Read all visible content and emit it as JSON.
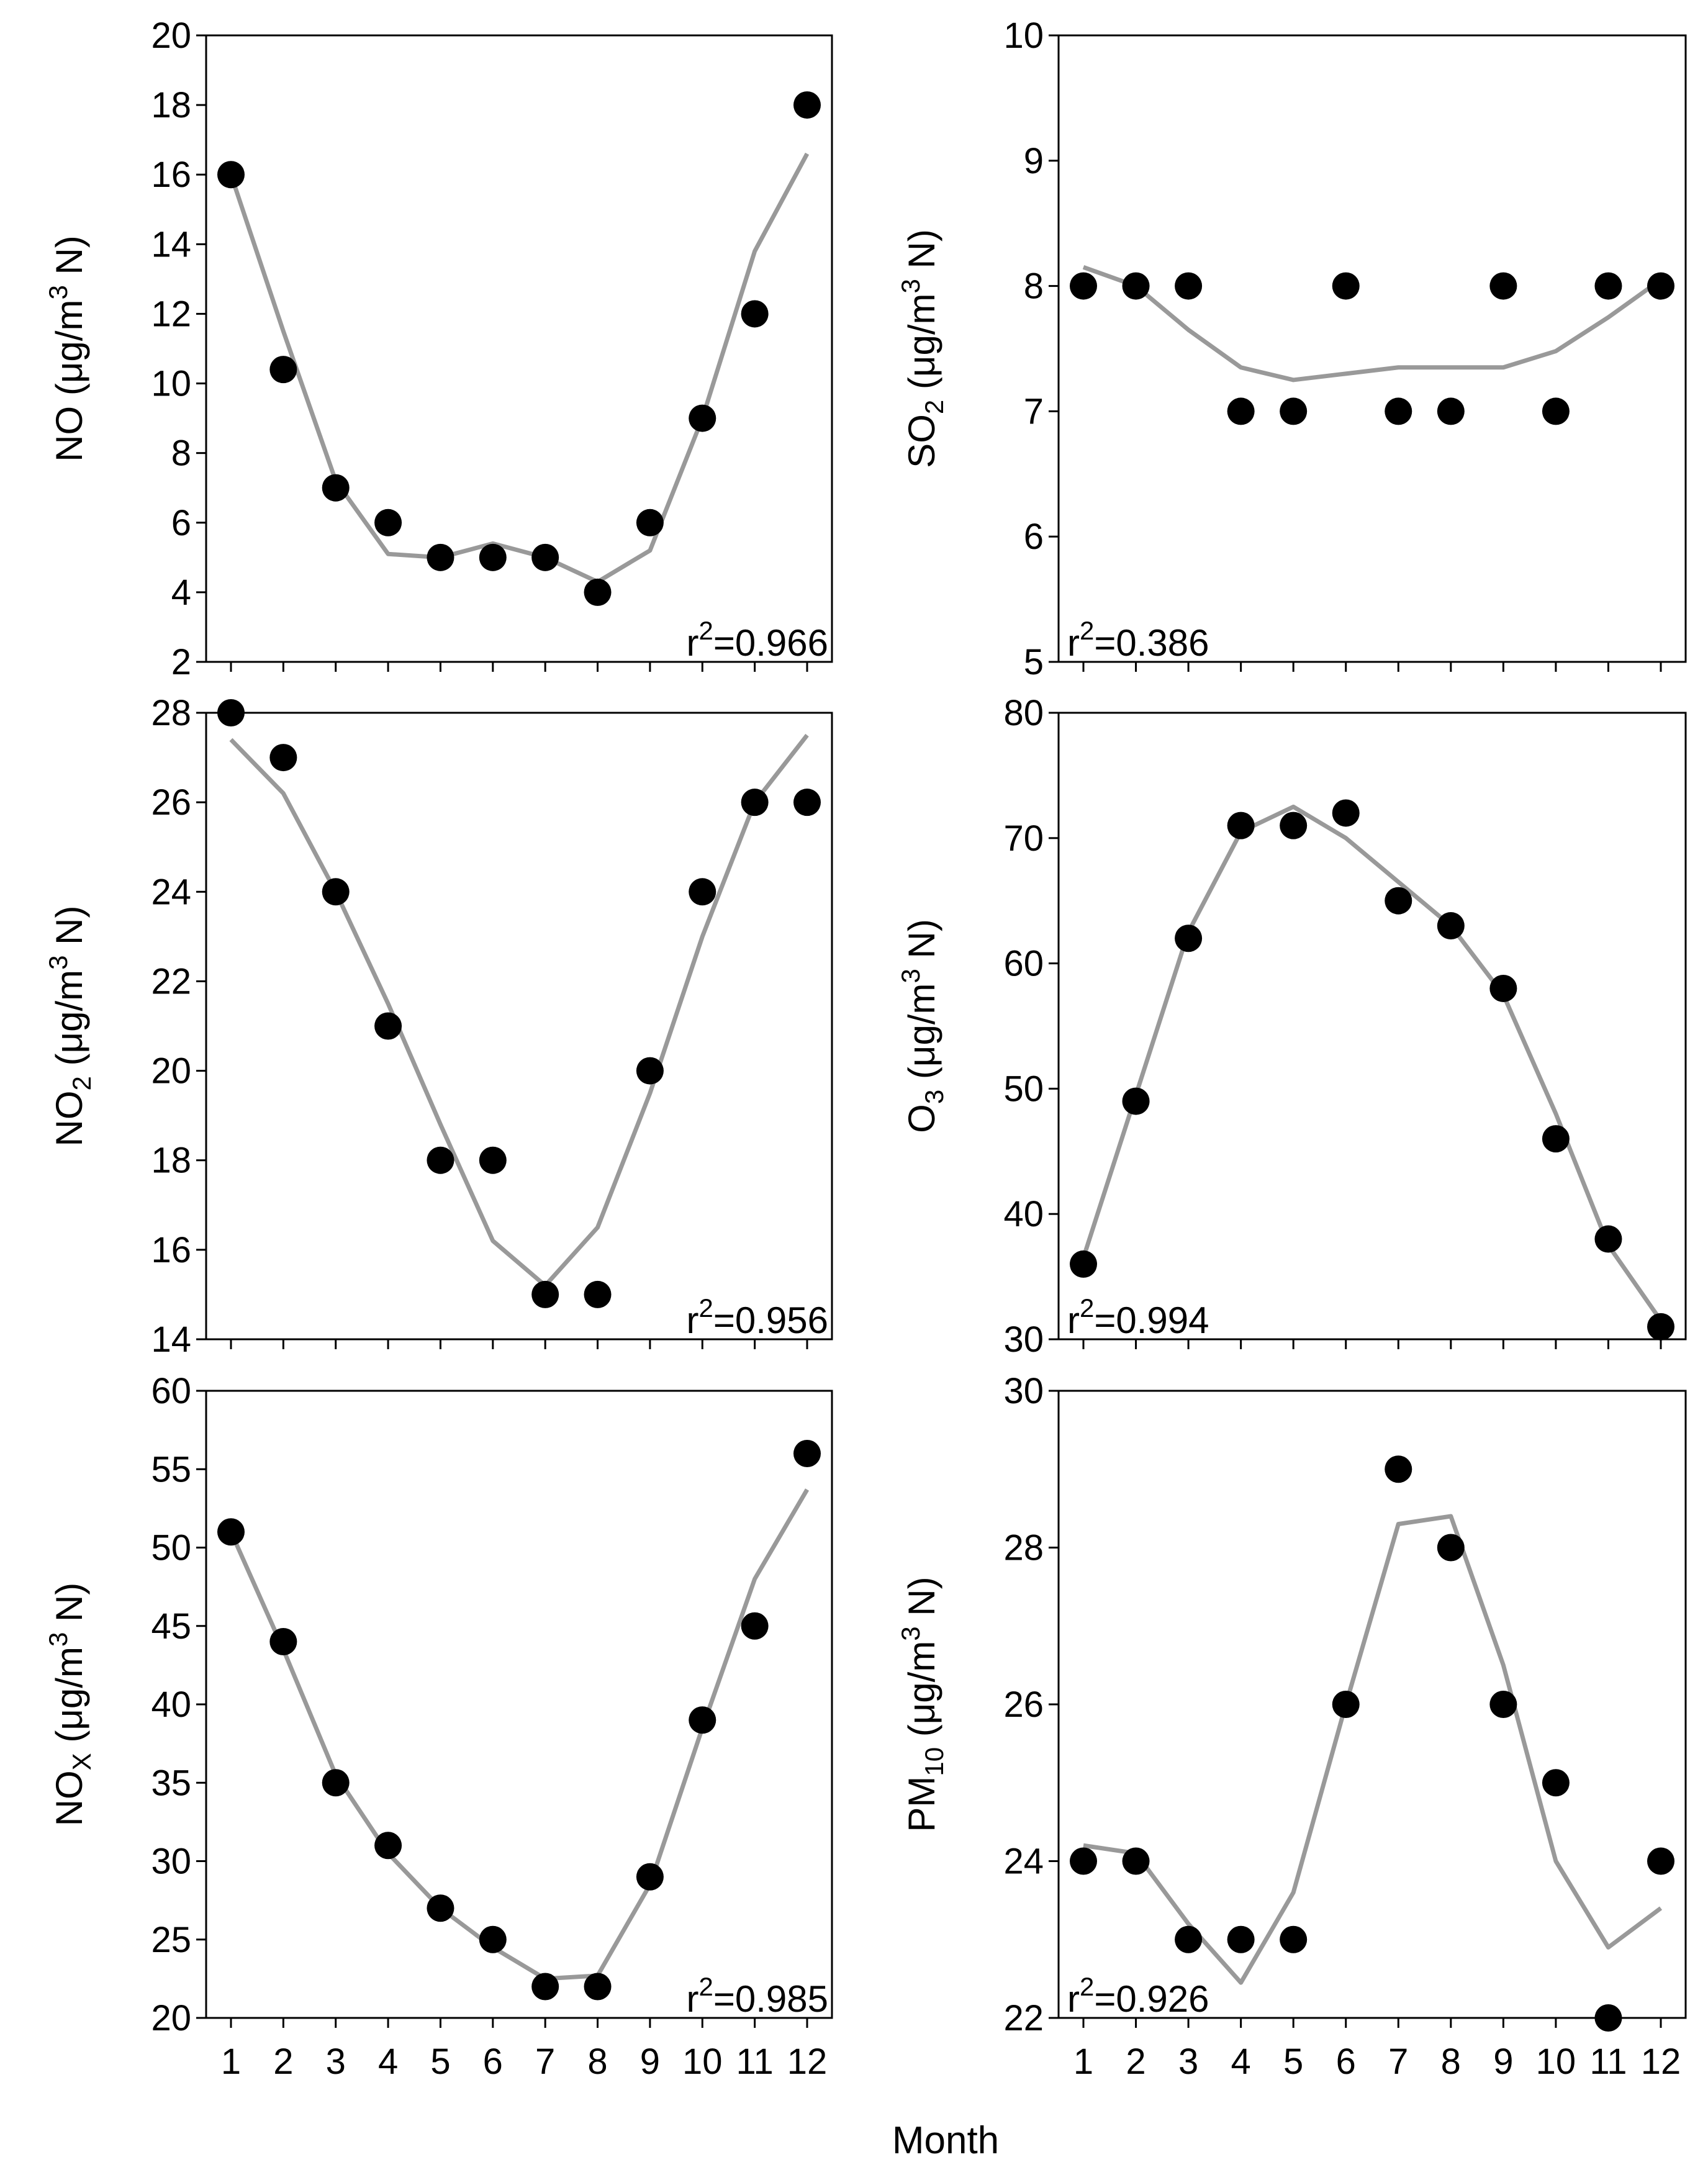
{
  "figure": {
    "xaxis_title": "Month",
    "colors": {
      "points": "#000000",
      "fit_line": "#999999",
      "frame": "#000000",
      "background": "#ffffff"
    }
  },
  "chart_data": [
    {
      "type": "scatter",
      "id": "no",
      "ylabel_main": "NO",
      "ylabel_sub": "",
      "ylabel_unit_pre": " (μg/m",
      "ylabel_unit_sup": "3",
      "ylabel_unit_post": " N)",
      "ylim": [
        2,
        20
      ],
      "yticks": [
        2,
        4,
        6,
        8,
        10,
        12,
        14,
        16,
        18,
        20
      ],
      "x": [
        1,
        2,
        3,
        4,
        5,
        6,
        7,
        8,
        9,
        10,
        11,
        12
      ],
      "points": [
        16,
        10.4,
        7,
        6,
        5,
        5,
        5,
        4,
        6,
        9,
        12,
        18
      ],
      "fit": [
        16,
        11.5,
        7.2,
        5.1,
        5.0,
        5.4,
        5.0,
        4.3,
        5.2,
        9.0,
        13.8,
        16.6
      ],
      "r2_label": "r",
      "r2_sup": "2",
      "r2_value": "=0.966",
      "r2_position": "bottom-right"
    },
    {
      "type": "scatter",
      "id": "so2",
      "ylabel_main": "SO",
      "ylabel_sub": "2",
      "ylabel_unit_pre": " (μg/m",
      "ylabel_unit_sup": "3",
      "ylabel_unit_post": " N)",
      "ylim": [
        5,
        10
      ],
      "yticks": [
        5,
        6,
        7,
        8,
        9,
        10
      ],
      "x": [
        1,
        2,
        3,
        4,
        5,
        6,
        7,
        8,
        9,
        10,
        11,
        12
      ],
      "points": [
        8,
        8,
        8,
        7,
        7,
        8,
        7,
        7,
        8,
        7,
        8,
        8
      ],
      "fit": [
        8.15,
        8.0,
        7.65,
        7.35,
        7.25,
        7.3,
        7.35,
        7.35,
        7.35,
        7.48,
        7.75,
        8.05
      ],
      "r2_label": "r",
      "r2_sup": "2",
      "r2_value": "=0.386",
      "r2_position": "bottom-left"
    },
    {
      "type": "scatter",
      "id": "no2",
      "ylabel_main": "NO",
      "ylabel_sub": "2",
      "ylabel_unit_pre": " (μg/m",
      "ylabel_unit_sup": "3",
      "ylabel_unit_post": " N)",
      "ylim": [
        14,
        28
      ],
      "yticks": [
        14,
        16,
        18,
        20,
        22,
        24,
        26,
        28
      ],
      "x": [
        1,
        2,
        3,
        4,
        5,
        6,
        7,
        8,
        9,
        10,
        11,
        12
      ],
      "points": [
        28,
        27,
        24,
        21,
        18,
        18,
        15,
        15,
        20,
        24,
        26,
        26
      ],
      "fit": [
        27.4,
        26.2,
        24.0,
        21.5,
        18.8,
        16.2,
        15.2,
        16.5,
        19.5,
        23.0,
        26.0,
        27.5
      ],
      "r2_label": "r",
      "r2_sup": "2",
      "r2_value": "=0.956",
      "r2_position": "bottom-right"
    },
    {
      "type": "scatter",
      "id": "o3",
      "ylabel_main": "O",
      "ylabel_sub": "3",
      "ylabel_unit_pre": " (μg/m",
      "ylabel_unit_sup": "3",
      "ylabel_unit_post": " N)",
      "ylim": [
        30,
        80
      ],
      "yticks": [
        30,
        40,
        50,
        60,
        70,
        80
      ],
      "x": [
        1,
        2,
        3,
        4,
        5,
        6,
        7,
        8,
        9,
        10,
        11,
        12
      ],
      "points": [
        36,
        49,
        62,
        71,
        71,
        72,
        65,
        63,
        58,
        46,
        38,
        31
      ],
      "fit": [
        36.5,
        49.5,
        62.5,
        70.5,
        72.5,
        70.0,
        66.5,
        63.0,
        57.5,
        48.0,
        37.5,
        31.5
      ],
      "r2_label": "r",
      "r2_sup": "2",
      "r2_value": "=0.994",
      "r2_position": "bottom-left"
    },
    {
      "type": "scatter",
      "id": "nox",
      "ylabel_main": "NO",
      "ylabel_sub": "X",
      "ylabel_unit_pre": " (μg/m",
      "ylabel_unit_sup": "3",
      "ylabel_unit_post": " N)",
      "ylim": [
        20,
        60
      ],
      "yticks": [
        20,
        25,
        30,
        35,
        40,
        45,
        50,
        55,
        60
      ],
      "x": [
        1,
        2,
        3,
        4,
        5,
        6,
        7,
        8,
        9,
        10,
        11,
        12
      ],
      "points": [
        51,
        44,
        35,
        31,
        27,
        25,
        22,
        22,
        29,
        39,
        45,
        56
      ],
      "fit": [
        51,
        43.5,
        35.5,
        30.5,
        27.0,
        24.5,
        22.5,
        22.7,
        28.5,
        38.5,
        48.0,
        53.7
      ],
      "r2_label": "r",
      "r2_sup": "2",
      "r2_value": "=0.985",
      "r2_position": "bottom-right"
    },
    {
      "type": "scatter",
      "id": "pm10",
      "ylabel_main": "PM",
      "ylabel_sub": "10",
      "ylabel_unit_pre": " (μg/m",
      "ylabel_unit_sup": "3",
      "ylabel_unit_post": " N)",
      "ylim": [
        22,
        30
      ],
      "yticks": [
        22,
        24,
        26,
        28,
        30
      ],
      "xticks_labels": [
        "1",
        "2",
        "3",
        "4",
        "5",
        "6",
        "7",
        "8",
        "9",
        "10",
        "11",
        "12"
      ],
      "x": [
        1,
        2,
        3,
        4,
        5,
        6,
        7,
        8,
        9,
        10,
        11,
        12
      ],
      "points": [
        24,
        24,
        23,
        23,
        23,
        26,
        29,
        28,
        26,
        25,
        22,
        24
      ],
      "fit": [
        24.2,
        24.1,
        23.2,
        22.45,
        23.6,
        26.0,
        28.3,
        28.4,
        26.5,
        24.0,
        22.9,
        23.4
      ],
      "r2_label": "r",
      "r2_sup": "2",
      "r2_value": "=0.926",
      "r2_position": "bottom-left"
    }
  ],
  "xticks_labels": [
    "1",
    "2",
    "3",
    "4",
    "5",
    "6",
    "7",
    "8",
    "9",
    "10",
    "11",
    "12"
  ]
}
